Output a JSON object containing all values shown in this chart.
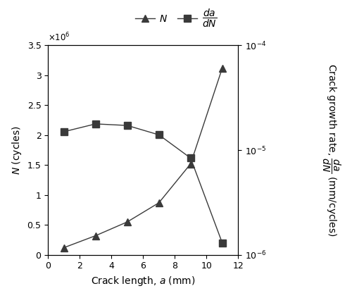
{
  "crack_length": [
    1,
    3,
    5,
    7,
    9,
    11
  ],
  "N_cycles": [
    120000.0,
    320000.0,
    550000.0,
    870000.0,
    1520000.0,
    3120000.0
  ],
  "dadN": [
    1.5e-05,
    1.78e-05,
    1.72e-05,
    1.4e-05,
    8.4e-06,
    1.3e-06
  ],
  "xlim": [
    0,
    12
  ],
  "N_ylim": [
    0,
    3500000.0
  ],
  "dadN_ylim": [
    1e-06,
    0.0001
  ],
  "xlabel": "Crack length, $a$ (mm)",
  "ylabel_left": "$N$ (cycles)",
  "ylabel_right": "Crack growth rate, $\\dfrac{da}{dN}$ (mm/cycles)",
  "legend_N": "$N$",
  "legend_dadN": "$\\dfrac{da}{dN}$",
  "line_color": "#3a3a3a",
  "marker_triangle": "^",
  "marker_square": "s",
  "markersize": 7,
  "linewidth": 1.0,
  "xticks": [
    0,
    2,
    4,
    6,
    8,
    10,
    12
  ],
  "N_yticks": [
    0,
    500000.0,
    1000000.0,
    1500000.0,
    2000000.0,
    2500000.0,
    3000000.0,
    3500000.0
  ],
  "N_yticklabels": [
    "0",
    "0.5",
    "1",
    "1.5",
    "2",
    "2.5",
    "3",
    "3.5"
  ]
}
